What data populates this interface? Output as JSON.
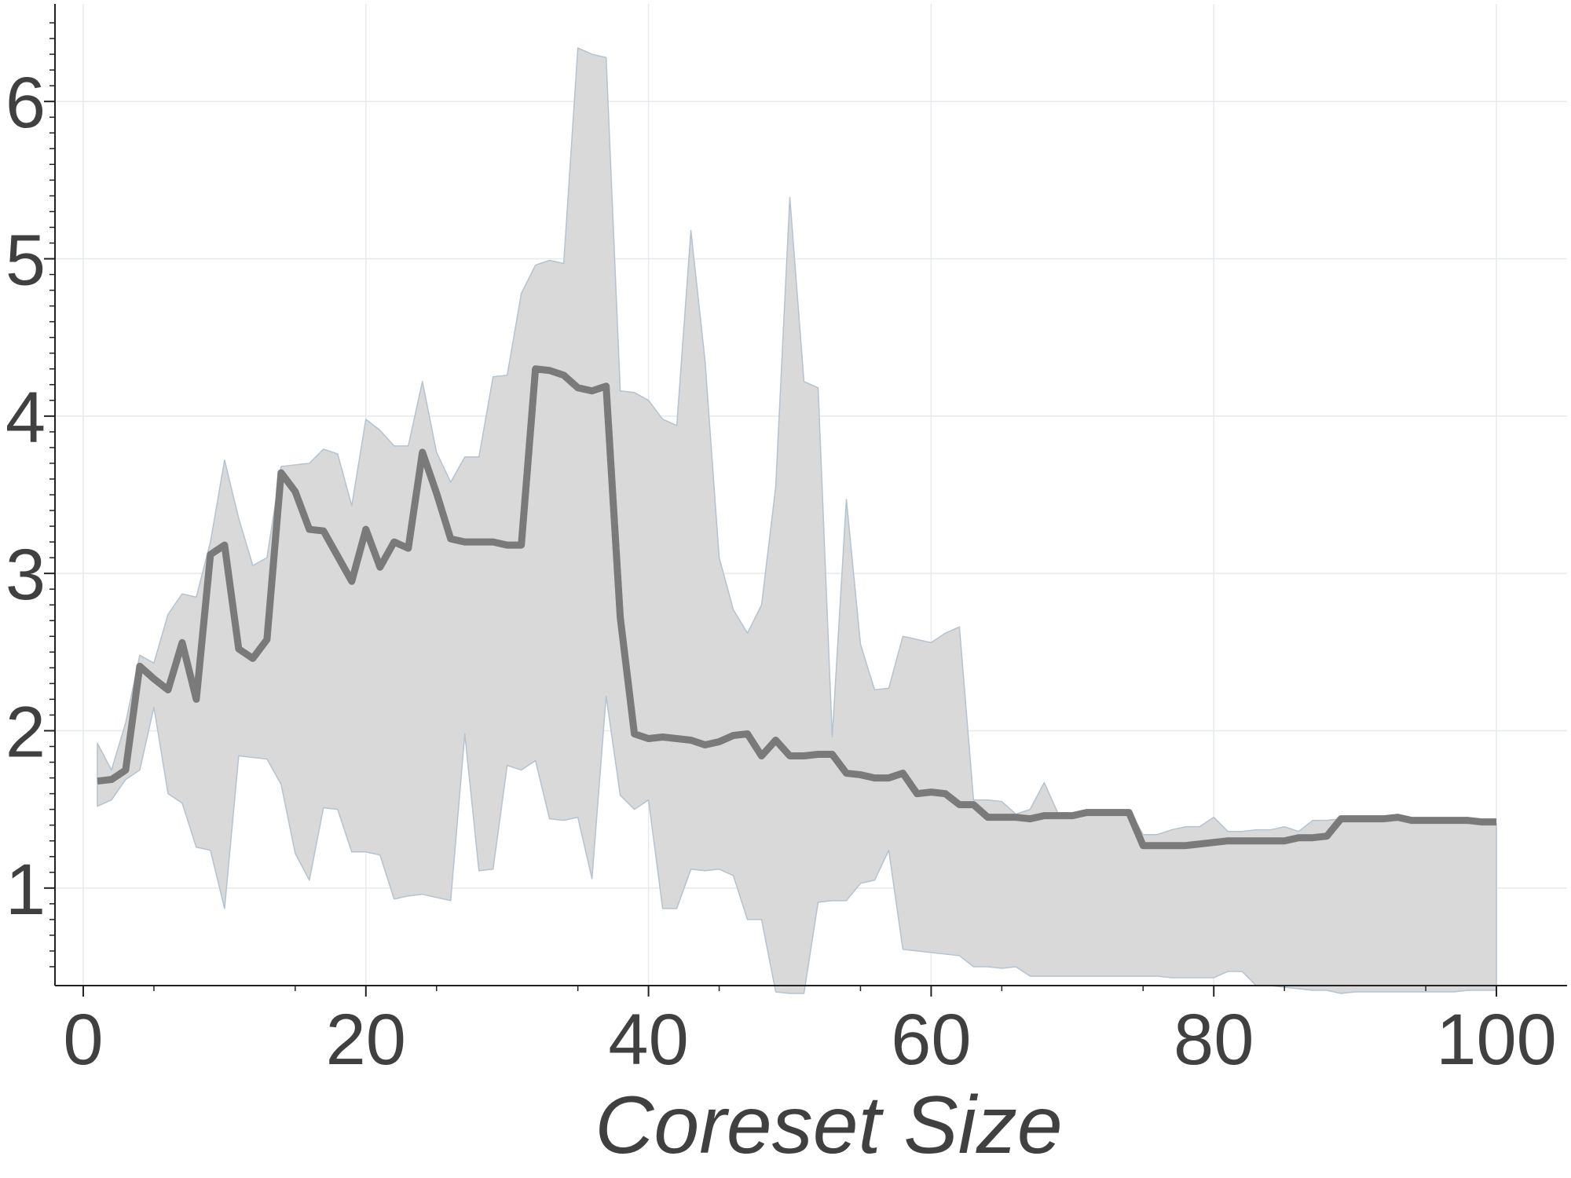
{
  "chart_data": {
    "type": "line",
    "title": "",
    "xlabel": "Coreset Size",
    "ylabel": "",
    "xlim": [
      -2,
      105
    ],
    "ylim": [
      0.38,
      6.62
    ],
    "xticks": [
      0,
      20,
      40,
      60,
      80,
      100
    ],
    "xtick_labels": [
      "0",
      "20",
      "40",
      "60",
      "80",
      "100"
    ],
    "yticks": [
      1,
      2,
      3,
      4,
      5,
      6
    ],
    "ytick_labels": [
      "1",
      "2",
      "3",
      "4",
      "5",
      "6"
    ],
    "grid": true,
    "legend": "none",
    "colors": {
      "line": "#7a7a7a",
      "band_fill": "#d9d9d9",
      "band_edge": "#b4c3d0",
      "axis": "#222222",
      "grid": "#e6e9ed",
      "text": "#404040"
    },
    "series": [
      {
        "kind": "band",
        "x": [
          1,
          2,
          3,
          4,
          5,
          6,
          7,
          8,
          9,
          10,
          11,
          12,
          13,
          14,
          15,
          16,
          17,
          18,
          19,
          20,
          21,
          22,
          23,
          24,
          25,
          26,
          27,
          28,
          29,
          30,
          31,
          32,
          33,
          34,
          35,
          36,
          37,
          38,
          39,
          40,
          41,
          42,
          43,
          44,
          45,
          46,
          47,
          48,
          49,
          50,
          51,
          52,
          53,
          54,
          55,
          56,
          57,
          58,
          59,
          60,
          61,
          62,
          63,
          64,
          65,
          66,
          67,
          68,
          69,
          70,
          71,
          72,
          73,
          74,
          75,
          76,
          77,
          78,
          79,
          80,
          81,
          82,
          83,
          84,
          85,
          86,
          87,
          88,
          89,
          90,
          91,
          92,
          93,
          94,
          95,
          96,
          97,
          98,
          99,
          100
        ],
        "upper": [
          1.92,
          1.75,
          2.05,
          2.48,
          2.43,
          2.74,
          2.87,
          2.85,
          3.2,
          3.72,
          3.35,
          3.05,
          3.1,
          3.68,
          3.69,
          3.7,
          3.79,
          3.76,
          3.43,
          3.98,
          3.91,
          3.81,
          3.81,
          4.22,
          3.77,
          3.58,
          3.74,
          3.74,
          4.25,
          4.26,
          4.78,
          4.96,
          4.99,
          4.97,
          6.34,
          6.3,
          6.28,
          4.16,
          4.15,
          4.1,
          3.98,
          3.94,
          5.18,
          4.35,
          3.1,
          2.77,
          2.62,
          2.8,
          3.55,
          5.39,
          4.22,
          4.18,
          1.96,
          3.47,
          2.55,
          2.26,
          2.27,
          2.6,
          2.58,
          2.56,
          2.62,
          2.66,
          1.56,
          1.56,
          1.55,
          1.47,
          1.5,
          1.67,
          1.47,
          1.47,
          1.48,
          1.48,
          1.48,
          1.5,
          1.34,
          1.34,
          1.37,
          1.39,
          1.39,
          1.45,
          1.36,
          1.36,
          1.37,
          1.37,
          1.39,
          1.36,
          1.43,
          1.43,
          1.44,
          1.44,
          1.44,
          1.44,
          1.44,
          1.43,
          1.43,
          1.42,
          1.42,
          1.42,
          1.41,
          1.41
        ],
        "lower": [
          1.52,
          1.56,
          1.69,
          1.75,
          2.15,
          1.6,
          1.54,
          1.26,
          1.24,
          0.87,
          1.84,
          1.83,
          1.82,
          1.66,
          1.22,
          1.05,
          1.51,
          1.5,
          1.23,
          1.23,
          1.21,
          0.93,
          0.95,
          0.96,
          0.94,
          0.92,
          1.98,
          1.11,
          1.12,
          1.78,
          1.75,
          1.81,
          1.44,
          1.43,
          1.45,
          1.06,
          2.22,
          1.59,
          1.5,
          1.56,
          0.87,
          0.87,
          1.12,
          1.11,
          1.12,
          1.08,
          0.8,
          0.8,
          0.34,
          0.33,
          0.33,
          0.91,
          0.92,
          0.92,
          1.03,
          1.05,
          1.24,
          0.61,
          0.6,
          0.59,
          0.58,
          0.57,
          0.5,
          0.5,
          0.49,
          0.5,
          0.44,
          0.44,
          0.44,
          0.44,
          0.44,
          0.44,
          0.44,
          0.44,
          0.44,
          0.44,
          0.43,
          0.43,
          0.43,
          0.43,
          0.47,
          0.47,
          0.38,
          0.38,
          0.37,
          0.36,
          0.35,
          0.35,
          0.33,
          0.34,
          0.34,
          0.34,
          0.34,
          0.34,
          0.34,
          0.34,
          0.34,
          0.35,
          0.35,
          0.35
        ]
      },
      {
        "kind": "line",
        "x": [
          1,
          2,
          3,
          4,
          5,
          6,
          7,
          8,
          9,
          10,
          11,
          12,
          13,
          14,
          15,
          16,
          17,
          18,
          19,
          20,
          21,
          22,
          23,
          24,
          25,
          26,
          27,
          28,
          29,
          30,
          31,
          32,
          33,
          34,
          35,
          36,
          37,
          38,
          39,
          40,
          41,
          42,
          43,
          44,
          45,
          46,
          47,
          48,
          49,
          50,
          51,
          52,
          53,
          54,
          55,
          56,
          57,
          58,
          59,
          60,
          61,
          62,
          63,
          64,
          65,
          66,
          67,
          68,
          69,
          70,
          71,
          72,
          73,
          74,
          75,
          76,
          77,
          78,
          79,
          80,
          81,
          82,
          83,
          84,
          85,
          86,
          87,
          88,
          89,
          90,
          91,
          92,
          93,
          94,
          95,
          96,
          97,
          98,
          99,
          100
        ],
        "values": [
          1.68,
          1.69,
          1.75,
          2.41,
          2.33,
          2.26,
          2.56,
          2.2,
          3.12,
          3.18,
          2.52,
          2.46,
          2.58,
          3.64,
          3.52,
          3.28,
          3.27,
          3.11,
          2.95,
          3.28,
          3.04,
          3.2,
          3.16,
          3.77,
          3.51,
          3.22,
          3.2,
          3.2,
          3.2,
          3.18,
          3.18,
          4.3,
          4.29,
          4.26,
          4.18,
          4.16,
          4.19,
          2.72,
          1.98,
          1.95,
          1.96,
          1.95,
          1.94,
          1.91,
          1.93,
          1.97,
          1.98,
          1.84,
          1.94,
          1.84,
          1.84,
          1.85,
          1.85,
          1.73,
          1.72,
          1.7,
          1.7,
          1.73,
          1.6,
          1.61,
          1.6,
          1.53,
          1.53,
          1.45,
          1.45,
          1.45,
          1.44,
          1.46,
          1.46,
          1.46,
          1.48,
          1.48,
          1.48,
          1.48,
          1.27,
          1.27,
          1.27,
          1.27,
          1.28,
          1.29,
          1.3,
          1.3,
          1.3,
          1.3,
          1.3,
          1.32,
          1.32,
          1.33,
          1.44,
          1.44,
          1.44,
          1.44,
          1.45,
          1.43,
          1.43,
          1.43,
          1.43,
          1.43,
          1.42,
          1.42
        ]
      }
    ]
  }
}
